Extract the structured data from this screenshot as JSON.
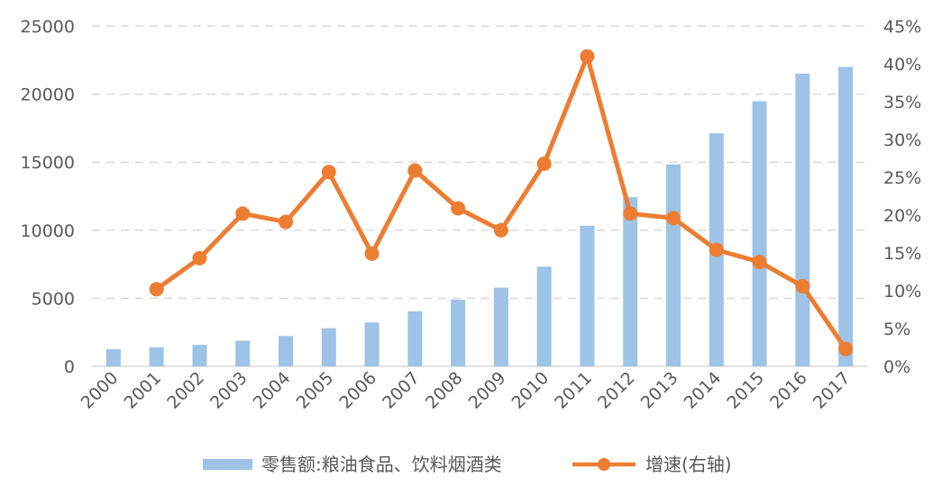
{
  "chart_data": {
    "type": "bar",
    "categories": [
      "2000",
      "2001",
      "2002",
      "2003",
      "2004",
      "2005",
      "2006",
      "2007",
      "2008",
      "2009",
      "2010",
      "2011",
      "2012",
      "2013",
      "2014",
      "2015",
      "2016",
      "2017"
    ],
    "series": [
      {
        "name": "零售额:粮油食品、饮料烟酒类",
        "type": "bar",
        "axis": "left",
        "color": "#9dc3e6",
        "values": [
          1250,
          1400,
          1580,
          1880,
          2230,
          2800,
          3220,
          4050,
          4900,
          5780,
          7320,
          10330,
          12430,
          14840,
          17120,
          19480,
          21510,
          22000
        ]
      },
      {
        "name": "增速(右轴)",
        "type": "line",
        "axis": "right",
        "color": "#ed7d31",
        "values": [
          null,
          0.102,
          0.143,
          0.202,
          0.191,
          0.257,
          0.149,
          0.259,
          0.209,
          0.18,
          0.268,
          0.41,
          0.202,
          0.196,
          0.154,
          0.138,
          0.106,
          0.023
        ]
      }
    ],
    "y_left": {
      "min": 0,
      "max": 25000,
      "ticks": [
        "0",
        "5000",
        "10000",
        "15000",
        "20000",
        "25000"
      ]
    },
    "y_right": {
      "min": 0,
      "max": 0.45,
      "ticks": [
        "0%",
        "5%",
        "10%",
        "15%",
        "20%",
        "25%",
        "30%",
        "35%",
        "40%",
        "45%"
      ]
    },
    "grid": true,
    "legend_position": "bottom"
  }
}
